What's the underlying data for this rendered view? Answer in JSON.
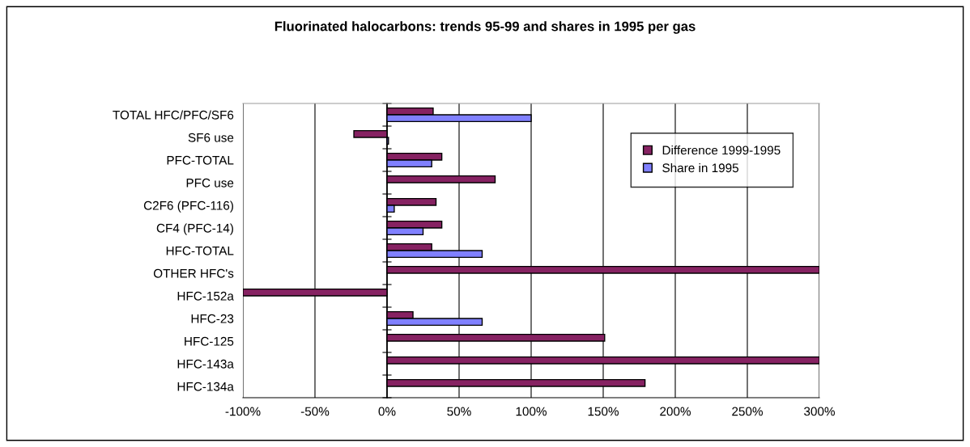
{
  "chart_data": {
    "type": "bar",
    "orientation": "horizontal",
    "title": "Fluorinated halocarbons: trends 95-99 and shares in 1995 per gas",
    "categories": [
      "TOTAL HFC/PFC/SF6",
      "SF6 use",
      "PFC-TOTAL",
      "PFC use",
      "C2F6 (PFC-116)",
      "CF4 (PFC-14)",
      "HFC-TOTAL",
      "OTHER HFC's",
      "HFC-152a",
      "HFC-23",
      "HFC-125",
      "HFC-143a",
      "HFC-134a"
    ],
    "series": [
      {
        "name": "Difference 1999-1995",
        "color": "#862262",
        "values": [
          32,
          -23,
          38,
          75,
          34,
          38,
          31,
          300,
          -100,
          18,
          151,
          300,
          179
        ]
      },
      {
        "name": "Share in 1995",
        "color": "#8080ff",
        "values": [
          100,
          1,
          31,
          null,
          5,
          25,
          66,
          null,
          null,
          66,
          null,
          null,
          null
        ]
      }
    ],
    "xlim": [
      -100,
      300
    ],
    "xticks": [
      {
        "value": -100,
        "label": "-100%"
      },
      {
        "value": -50,
        "label": "-50%"
      },
      {
        "value": 0,
        "label": "0%"
      },
      {
        "value": 50,
        "label": "50%"
      },
      {
        "value": 100,
        "label": "100%"
      },
      {
        "value": 150,
        "label": "150%"
      },
      {
        "value": 200,
        "label": "200%"
      },
      {
        "value": 250,
        "label": "250%"
      },
      {
        "value": 300,
        "label": "300%"
      }
    ],
    "grid": "x",
    "legend": "top right"
  }
}
